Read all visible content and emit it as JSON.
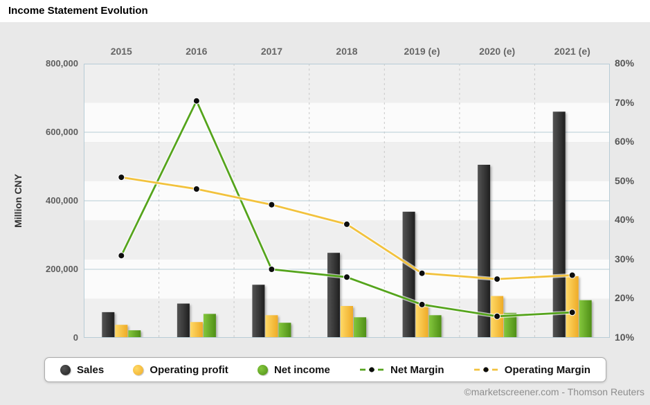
{
  "header": {
    "title": "Income Statement Evolution"
  },
  "footer": {
    "credit": "©marketscreener.com - Thomson Reuters"
  },
  "colors": {
    "panel_bg": "#e9e9e9",
    "band_dark": "#efefef",
    "band_light": "#fbfbfb",
    "grid": "#b7ccd6",
    "column_separator": "#c8c8c8",
    "marker": "#0d0d0d"
  },
  "chart_data": {
    "type": "bar",
    "title": "Income Statement Evolution",
    "categories": [
      "2015",
      "2016",
      "2017",
      "2018",
      "2019 (e)",
      "2020 (e)",
      "2021 (e)"
    ],
    "legend_position": "bottom",
    "grid": true,
    "left_axis": {
      "label": "Million CNY",
      "min": 0,
      "max": 800000,
      "ticks": [
        "800,000",
        "600,000",
        "400,000",
        "200,000",
        "0"
      ],
      "tick_values": [
        800000,
        600000,
        400000,
        200000,
        0
      ]
    },
    "right_axis": {
      "min": 10,
      "max": 80,
      "ticks": [
        "80%",
        "70%",
        "60%",
        "50%",
        "40%",
        "30%",
        "20%",
        "10%"
      ],
      "tick_values": [
        80,
        70,
        60,
        50,
        40,
        30,
        20,
        10
      ]
    },
    "series": [
      {
        "name": "Sales",
        "slug": "sales",
        "type": "bar",
        "axis": "left",
        "color": "#3c3c3c",
        "color_light": "#545454",
        "color_dark": "#1f1f1f",
        "values": [
          75000,
          100000,
          155000,
          248000,
          368000,
          505000,
          660000
        ]
      },
      {
        "name": "Operating profit",
        "slug": "operating-profit",
        "type": "bar",
        "axis": "left",
        "color": "#f8c445",
        "color_light": "#ffd966",
        "color_dark": "#eeab27",
        "values": [
          38000,
          46000,
          66000,
          93000,
          100000,
          122000,
          180000
        ]
      },
      {
        "name": "Net income",
        "slug": "net-income",
        "type": "bar",
        "axis": "left",
        "color": "#69ad25",
        "color_light": "#84c73d",
        "color_dark": "#4f8f17",
        "values": [
          22000,
          70000,
          44000,
          60000,
          66000,
          73000,
          110000
        ]
      },
      {
        "name": "Net Margin",
        "slug": "net-margin",
        "type": "line",
        "axis": "right",
        "color": "#55a41c",
        "values": [
          31,
          70.5,
          27.5,
          25.5,
          18.5,
          15.5,
          16.5
        ]
      },
      {
        "name": "Operating Margin",
        "slug": "operating-margin",
        "type": "line",
        "axis": "right",
        "color": "#f2c23d",
        "values": [
          51,
          48,
          44,
          39,
          26.5,
          25,
          26
        ]
      }
    ]
  }
}
